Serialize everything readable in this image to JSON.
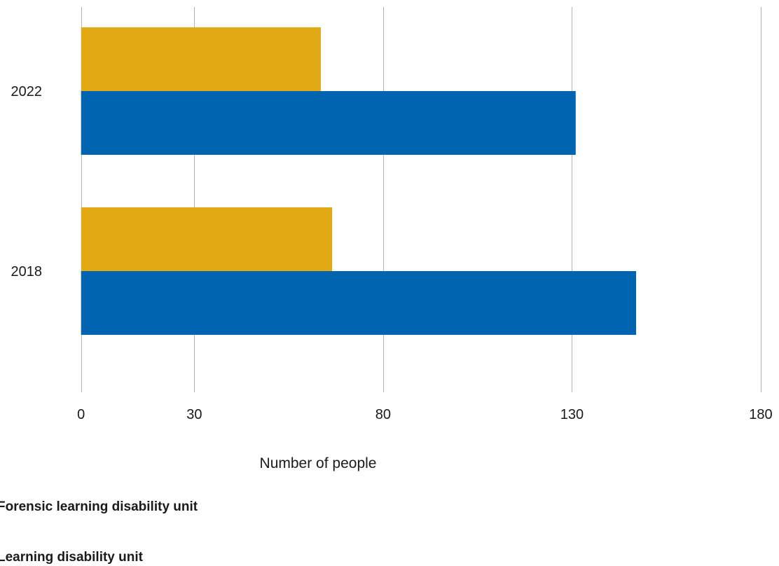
{
  "chart_data": {
    "type": "bar",
    "orientation": "horizontal",
    "categories": [
      "2022",
      "2018"
    ],
    "series": [
      {
        "name": "Forensic learning disability unit",
        "color": "#E1A914",
        "values": [
          63.5,
          66.5
        ]
      },
      {
        "name": "Learning disability unit",
        "color": "#0064B0",
        "values": [
          131,
          147
        ]
      }
    ],
    "xticks": [
      0,
      30,
      80,
      130,
      180
    ],
    "xlim": [
      0,
      180
    ],
    "xlabel": "Number of people",
    "ylabel": "",
    "title": "",
    "grid": "vertical",
    "legend_position": "bottom-left"
  }
}
